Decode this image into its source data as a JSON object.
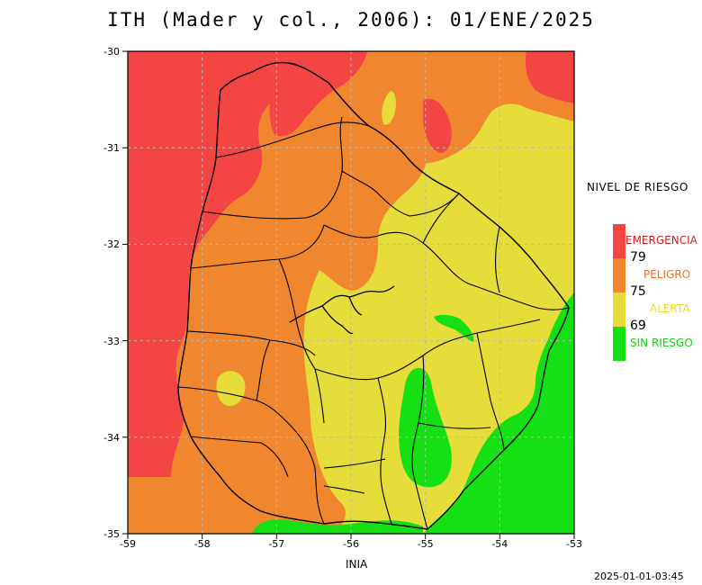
{
  "title": "ITH (Mader y col., 2006): 01/ENE/2025",
  "axes": {
    "x_ticks": [
      "-59",
      "-58",
      "-57",
      "-56",
      "-55",
      "-54",
      "-53"
    ],
    "y_ticks": [
      "-30",
      "-31",
      "-32",
      "-33",
      "-34",
      "-35"
    ],
    "xlim": [
      -59,
      -53
    ],
    "ylim": [
      -35,
      -30
    ],
    "grid": true
  },
  "legend": {
    "title": "NIVEL DE RIESGO",
    "categories": [
      {
        "label": "EMERGENCIA",
        "color": "#f44545"
      },
      {
        "label": "PELIGRO",
        "color": "#f0862e"
      },
      {
        "label": "ALERTA",
        "color": "#e6dd3a"
      },
      {
        "label": "SIN RIESGO",
        "color": "#14e014"
      }
    ],
    "thresholds": [
      "79",
      "75",
      "69"
    ]
  },
  "colors": {
    "emergencia_text": "#cc2020",
    "peligro_text": "#f07028",
    "alerta_text": "#e8dc30",
    "sin_riesgo_text": "#10d010"
  },
  "source": "INIA",
  "timestamp": "2025-01-01-03:45"
}
